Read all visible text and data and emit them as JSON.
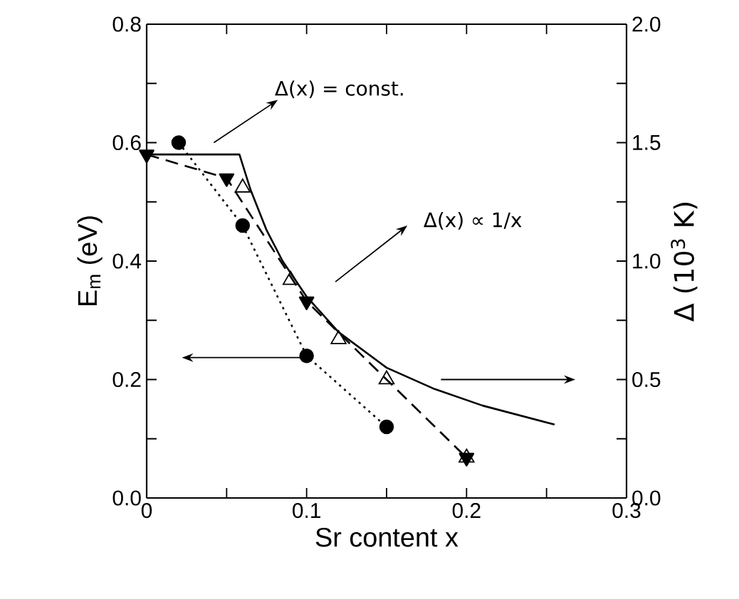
{
  "chart_data": {
    "type": "line",
    "xlabel": "Sr content x",
    "ylabel": "E$_{m}$ (eV)",
    "y2label": "Δ (10$^{3}$ K)",
    "xlim": [
      0,
      0.3
    ],
    "xticks": [
      {
        "value": 0,
        "label": "0"
      },
      {
        "value": 0.05,
        "label": null
      },
      {
        "value": 0.1,
        "label": "0.1"
      },
      {
        "value": 0.15,
        "label": null
      },
      {
        "value": 0.2,
        "label": "0.2"
      },
      {
        "value": 0.25,
        "label": null
      },
      {
        "value": 0.3,
        "label": "0.3"
      }
    ],
    "ylim": [
      0,
      0.8
    ],
    "yticks": [
      {
        "value": 0,
        "label": "0.0"
      },
      {
        "value": 0.1,
        "label": null
      },
      {
        "value": 0.2,
        "label": "0.2"
      },
      {
        "value": 0.3,
        "label": null
      },
      {
        "value": 0.4,
        "label": "0.4"
      },
      {
        "value": 0.5,
        "label": null
      },
      {
        "value": 0.6,
        "label": "0.6"
      },
      {
        "value": 0.7,
        "label": null
      },
      {
        "value": 0.8,
        "label": "0.8"
      }
    ],
    "y2lim": [
      0,
      2.0
    ],
    "y2ticks": [
      {
        "value": 0,
        "label": "0.0"
      },
      {
        "value": 0.25,
        "label": null
      },
      {
        "value": 0.5,
        "label": "0.5"
      },
      {
        "value": 0.75,
        "label": null
      },
      {
        "value": 1.0,
        "label": "1.0"
      },
      {
        "value": 1.25,
        "label": null
      },
      {
        "value": 1.5,
        "label": "1.5"
      },
      {
        "value": 1.75,
        "label": null
      },
      {
        "value": 2.0,
        "label": "2.0"
      }
    ],
    "annotations": [
      "Δ(x) = const.",
      "Δ(x) ∝ 1/x"
    ],
    "series": [
      {
        "color": "#000000",
        "marker": "circle",
        "line_style": "dotted",
        "x": [
          0.02,
          0.06,
          0.1,
          0.15
        ],
        "values": [
          0.6,
          0.46,
          0.24,
          0.12
        ]
      },
      {
        "axis": "y2",
        "color": "#000000",
        "marker": "triangle",
        "line_style": "dashed",
        "x": [
          0,
          0.05,
          0.1,
          0.2
        ],
        "values": [
          1.45,
          1.35,
          0.83,
          0.17
        ]
      },
      {
        "type": "scatter",
        "axis": "y2",
        "color": "#000000",
        "marker": "triangle",
        "x": [
          0.06,
          0.09,
          0.12,
          0.15,
          0.2
        ],
        "values": [
          1.31,
          0.92,
          0.67,
          0.5,
          0.17
        ]
      },
      {
        "axis": "y2",
        "color": "#000000",
        "marker": "none",
        "line_style": "solid",
        "x": [
          0,
          0.058,
          0.065,
          0.075,
          0.085,
          0.1,
          0.12,
          0.15,
          0.18,
          0.21,
          0.255
        ],
        "values": [
          1.45,
          1.45,
          1.3,
          1.13,
          1.0,
          0.85,
          0.7,
          0.55,
          0.46,
          0.39,
          0.31
        ]
      }
    ]
  }
}
